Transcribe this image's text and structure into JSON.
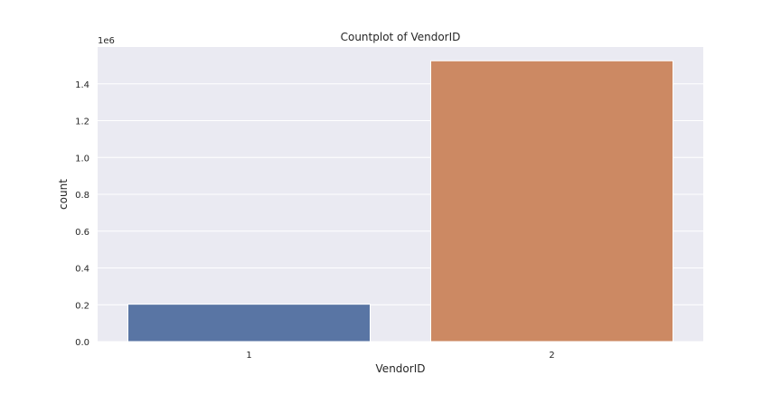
{
  "chart_data": {
    "type": "bar",
    "title": "Countplot of VendorID",
    "xlabel": "VendorID",
    "ylabel": "count",
    "offset_text": "1e6",
    "categories": [
      "1",
      "2"
    ],
    "values": [
      203000,
      1525000
    ],
    "ylim": [
      0,
      1600000
    ],
    "yticks": [
      0,
      200000,
      400000,
      600000,
      800000,
      1000000,
      1200000,
      1400000
    ],
    "ytick_labels": [
      "0.0",
      "0.2",
      "0.4",
      "0.6",
      "0.8",
      "1.0",
      "1.2",
      "1.4"
    ],
    "grid": true,
    "legend": "none",
    "style": {
      "plot_background": "#eaeaf2",
      "grid_color": "#ffffff",
      "bar_colors": [
        "#5975a4",
        "#cc8963"
      ]
    }
  }
}
